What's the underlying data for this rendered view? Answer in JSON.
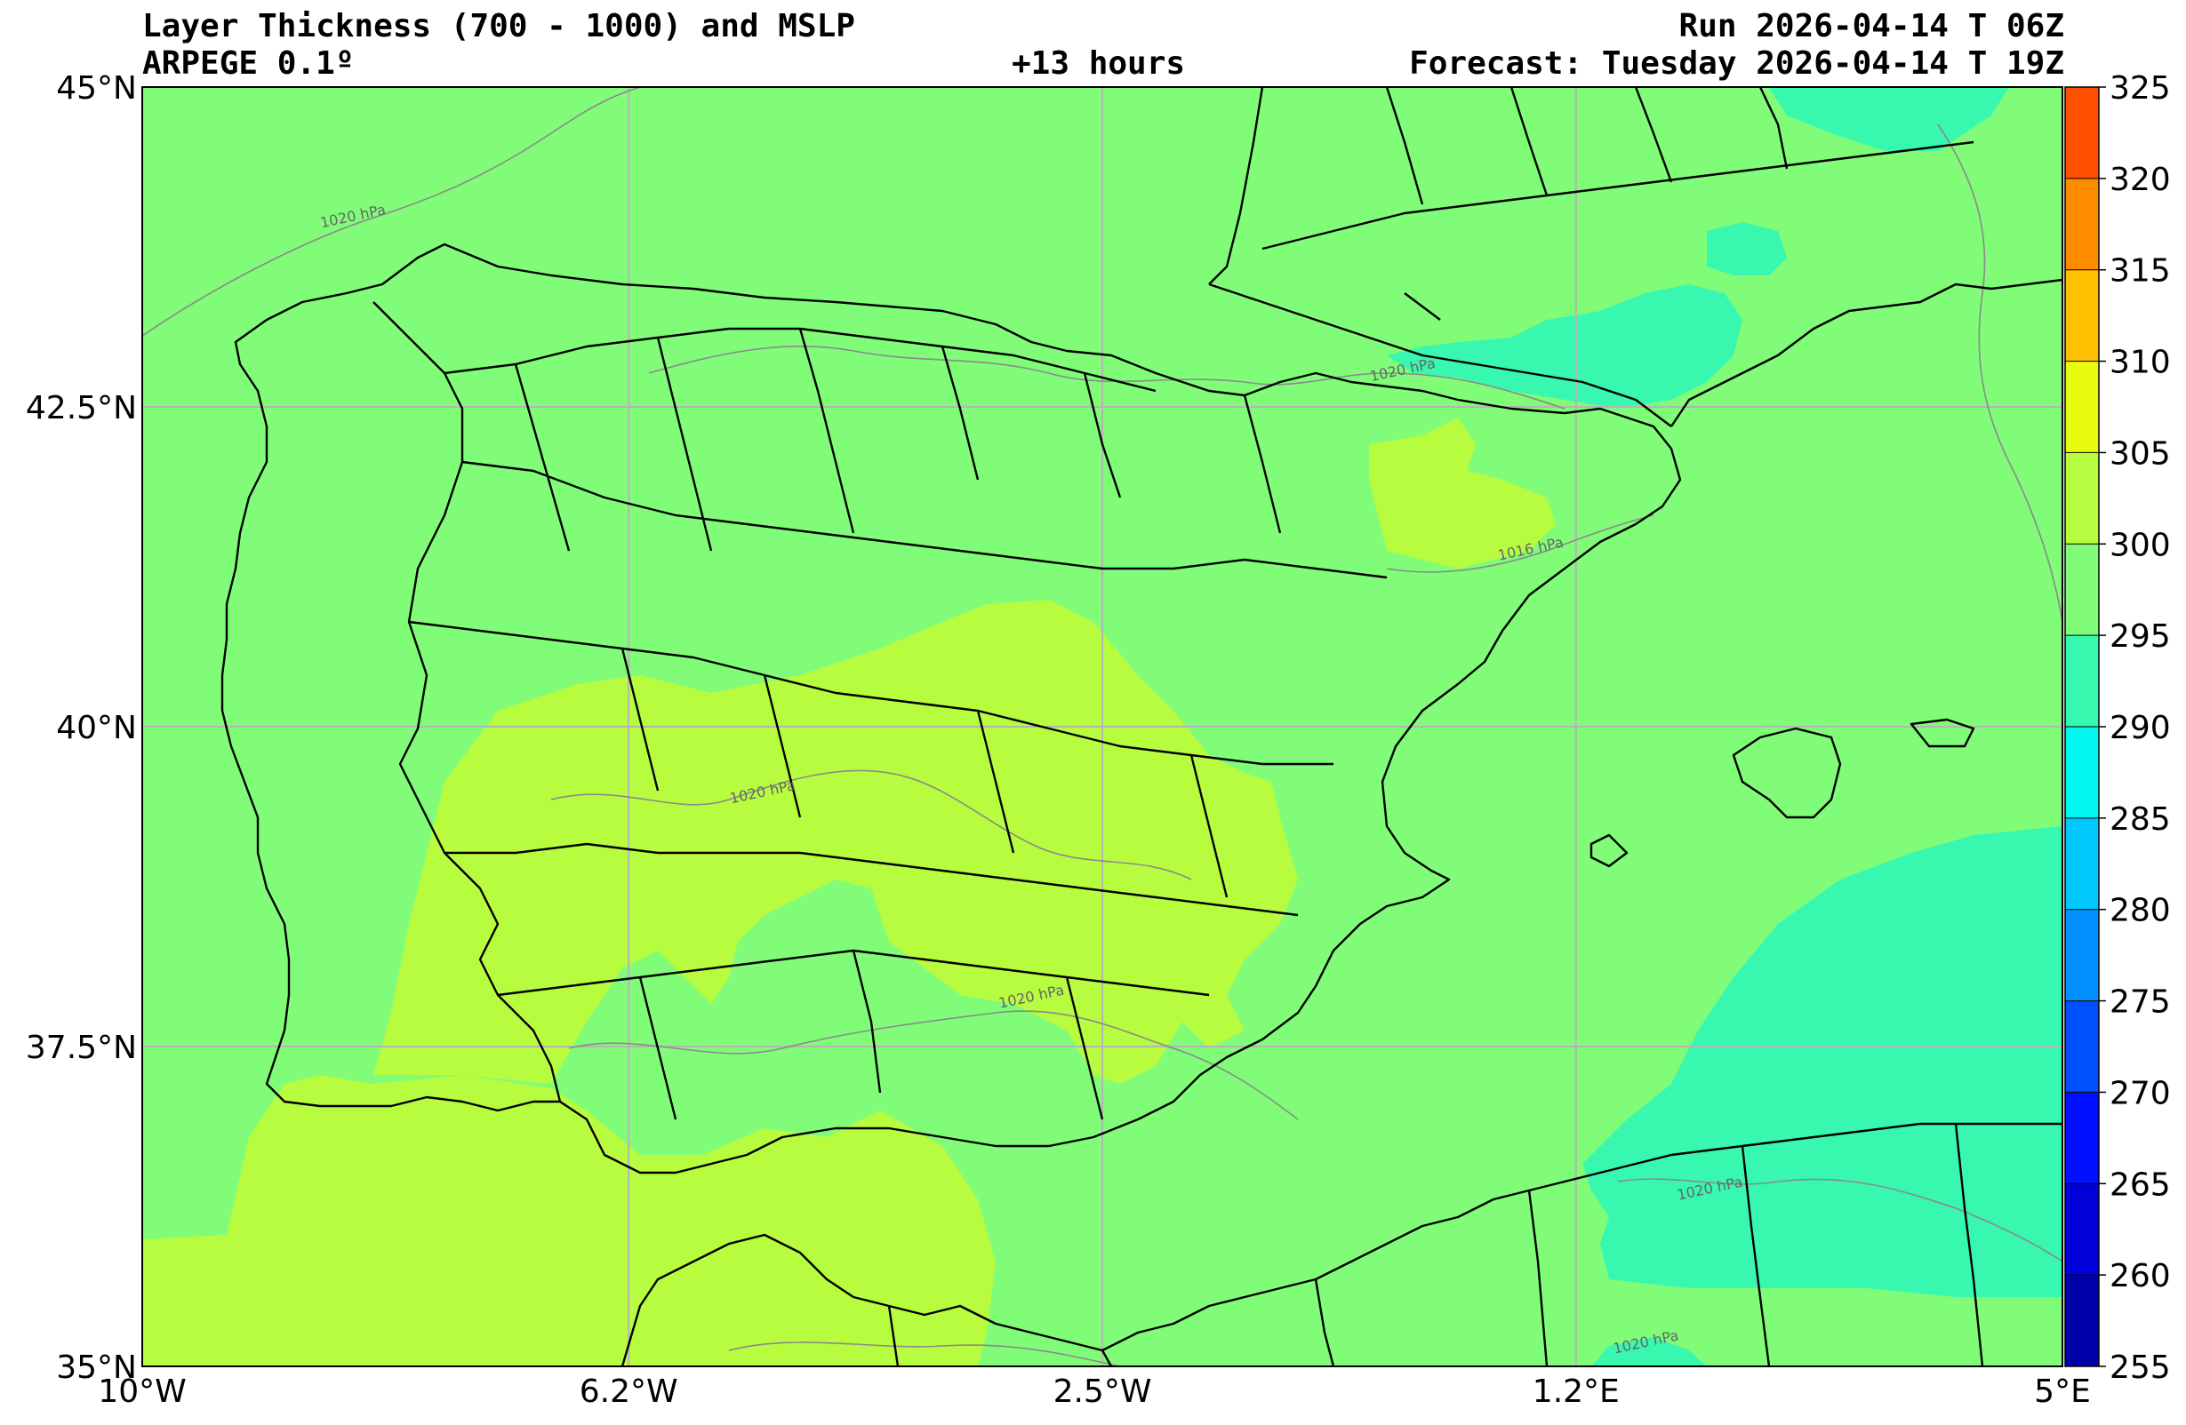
{
  "title": {
    "left_line1": "Layer Thickness (700 - 1000) and MSLP",
    "left_line2": "ARPEGE 0.1º",
    "center": "+13 hours",
    "right_line1": "Run 2026-04-14 T 06Z",
    "right_line2": "Forecast: Tuesday 2026-04-14 T 19Z"
  },
  "map": {
    "lon_range": [
      -10,
      5
    ],
    "lat_range": [
      35,
      45
    ],
    "lon_ticks": [
      {
        "value": -10,
        "label": "10°W"
      },
      {
        "value": -6.2,
        "label": "6.2°W"
      },
      {
        "value": -2.5,
        "label": "2.5°W"
      },
      {
        "value": 1.2,
        "label": "1.2°E"
      },
      {
        "value": 5,
        "label": "5°E"
      }
    ],
    "lat_ticks": [
      {
        "value": 45,
        "label": "45°N"
      },
      {
        "value": 42.5,
        "label": "42.5°N"
      },
      {
        "value": 40,
        "label": "40°N"
      },
      {
        "value": 37.5,
        "label": "37.5°N"
      },
      {
        "value": 35,
        "label": "35°N"
      }
    ],
    "isobar_labels": [
      {
        "text": "1020 hPa",
        "lon": -8.6,
        "lat": 43.9
      },
      {
        "text": "1020 hPa",
        "lon": -0.4,
        "lat": 42.7
      },
      {
        "text": "1020 hPa",
        "lon": -5.4,
        "lat": 39.4
      },
      {
        "text": "1020 hPa",
        "lon": -3.3,
        "lat": 37.8
      },
      {
        "text": "1016 hPa",
        "lon": 0.6,
        "lat": 41.3
      },
      {
        "text": "1020 hPa",
        "lon": 2.0,
        "lat": 36.3
      },
      {
        "text": "1020 hPa",
        "lon": 1.5,
        "lat": 35.1
      }
    ]
  },
  "colorbar": {
    "unit_note": "",
    "levels": [
      255,
      260,
      265,
      270,
      275,
      280,
      285,
      290,
      295,
      300,
      305,
      310,
      315,
      320,
      325
    ],
    "labels": [
      "255",
      "260",
      "265",
      "270",
      "275",
      "280",
      "285",
      "290",
      "295",
      "300",
      "305",
      "310",
      "315",
      "320",
      "325"
    ],
    "colors": [
      "#0000a8",
      "#0000d8",
      "#0010ff",
      "#0050ff",
      "#0090ff",
      "#00c8ff",
      "#00f8f0",
      "#38f8b0",
      "#80fc78",
      "#b8fc40",
      "#e8fc10",
      "#ffc000",
      "#ff8c00",
      "#ff5000",
      "#f01000"
    ]
  },
  "palette": {
    "background_field": "#80fc78",
    "warm_field": "#b8fc40",
    "cool_field": "#38f8b0",
    "grid": "#b4b4b4",
    "coast": "#000000",
    "isobar": "#8a8a8a"
  }
}
